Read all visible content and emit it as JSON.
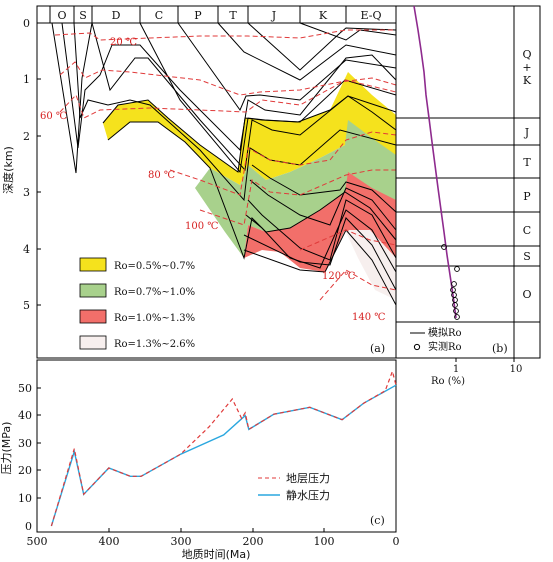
{
  "colors": {
    "yellow": "#f5e21d",
    "green": "#a8d18c",
    "red_zone": "#f26f6a",
    "pink": "#f7efee",
    "dashed_red": "#e03a3a",
    "hydro_blue": "#2aa7df",
    "sim_line": "#8e2b8e",
    "black": "#000000"
  },
  "panel_a": {
    "label": "(a)",
    "periods": [
      "O",
      "S",
      "D",
      "C",
      "P",
      "T",
      "J",
      "K",
      "E-Q"
    ],
    "y_title": "深度(km)",
    "y_ticks": [
      "0",
      "1",
      "2",
      "3",
      "4",
      "5"
    ],
    "isotherms": [
      "20 ℃",
      "60 ℃",
      "80 ℃",
      "100 ℃",
      "120 ℃",
      "140 ℃"
    ],
    "legend": [
      {
        "label": "Ro=0.5%~0.7%",
        "color": "#f5e21d"
      },
      {
        "label": "Ro=0.7%~1.0%",
        "color": "#a8d18c"
      },
      {
        "label": "Ro=1.0%~1.3%",
        "color": "#f26f6a"
      },
      {
        "label": "Ro=1.3%~2.6%",
        "color": "#f7efee"
      }
    ]
  },
  "panel_b": {
    "label": "(b)",
    "strata": [
      "Q+K",
      "J",
      "T",
      "P",
      "C",
      "S",
      "O"
    ],
    "x_title": "Ro (%)",
    "x_ticks": [
      "1",
      "10"
    ],
    "legend_sim": "模拟Ro",
    "legend_meas": "实测Ro"
  },
  "panel_c": {
    "label": "(c)",
    "y_title": "压力(MPa)",
    "x_title": "地质时间(Ma)",
    "x_ticks": [
      "500",
      "400",
      "300",
      "200",
      "100",
      "0"
    ],
    "y_ticks": [
      "0",
      "10",
      "20",
      "30",
      "40",
      "50"
    ],
    "legend_formation": "地层压力",
    "legend_hydro": "静水压力"
  },
  "chart_data": [
    {
      "type": "line",
      "title": "",
      "xlabel": "",
      "ylabel": "深度(km)",
      "xlim": [
        500,
        0
      ],
      "ylim": [
        0,
        5.3
      ],
      "series": [
        {
          "x": [
            480,
            450,
            435,
            400,
            380,
            360,
            300,
            250,
            210,
            200,
            150,
            100,
            75,
            40,
            0
          ],
          "values": [
            0.2,
            0.3,
            1.2,
            0.9,
            0.7,
            0.7,
            1.5,
            2.4,
            3.2,
            2.7,
            3.3,
            3.6,
            3.1,
            3.8,
            4.9
          ]
        }
      ]
    },
    {
      "type": "line",
      "title": "",
      "xlabel": "Ro (%)",
      "ylabel": "",
      "x_scale": "log",
      "series": [
        {
          "name": "模拟Ro",
          "x": [
            0.25,
            0.3,
            0.35,
            0.4,
            0.45,
            0.5,
            0.55,
            0.6,
            0.7,
            0.8,
            0.9,
            1.0,
            1.05
          ],
          "values": [
            0,
            0.4,
            0.8,
            1.3,
            1.7,
            2.1,
            2.5,
            2.9,
            3.4,
            3.9,
            4.4,
            4.9,
            5.2
          ]
        },
        {
          "name": "实测Ro",
          "x": [
            0.65,
            1.05,
            0.95,
            0.97,
            0.98,
            1.0,
            1.0,
            1.02,
            1.05
          ],
          "values": [
            4.0,
            4.4,
            4.7,
            4.8,
            4.9,
            5.0,
            5.05,
            5.15,
            5.25
          ]
        }
      ]
    },
    {
      "type": "line",
      "title": "",
      "xlabel": "地质时间(Ma)",
      "ylabel": "压力(MPa)",
      "xlim": [
        500,
        0
      ],
      "ylim": [
        0,
        55
      ],
      "series": [
        {
          "name": "地层压力",
          "x": [
            480,
            448,
            435,
            400,
            370,
            355,
            300,
            260,
            228,
            215,
            210,
            205,
            170,
            120,
            75,
            45,
            15,
            5,
            0
          ],
          "values": [
            0,
            28,
            11.5,
            21,
            18,
            18,
            26,
            36,
            46,
            39,
            41,
            35,
            40.5,
            43,
            38.5,
            44.5,
            49,
            56,
            51
          ]
        },
        {
          "name": "静水压力",
          "x": [
            480,
            448,
            435,
            400,
            370,
            355,
            300,
            240,
            210,
            205,
            170,
            120,
            75,
            45,
            0
          ],
          "values": [
            0,
            27,
            11.5,
            21,
            18,
            18,
            26,
            33,
            40,
            35,
            40.5,
            43,
            38.5,
            44.5,
            51
          ]
        }
      ]
    }
  ]
}
